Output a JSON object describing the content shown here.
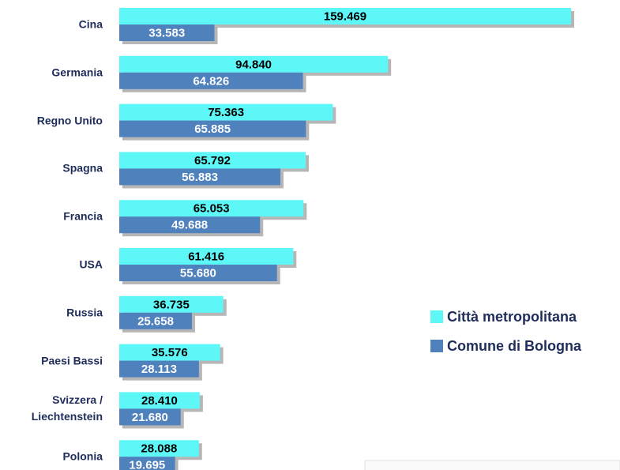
{
  "chart_data": {
    "type": "bar",
    "orientation": "horizontal",
    "categories": [
      "Cina",
      "Germania",
      "Regno Unito",
      "Spagna",
      "Francia",
      "USA",
      "Russia",
      "Paesi Bassi",
      "Svizzera / Liechtenstein",
      "Polonia"
    ],
    "series": [
      {
        "name": "Città metropolitana",
        "color": "#5ef7f7",
        "values": [
          159469,
          94840,
          75363,
          65792,
          65053,
          61416,
          36735,
          35576,
          28410,
          28088
        ],
        "value_labels": [
          "159.469",
          "94.840",
          "75.363",
          "65.792",
          "65.053",
          "61.416",
          "36.735",
          "35.576",
          "28.410",
          "28.088"
        ]
      },
      {
        "name": "Comune di Bologna",
        "color": "#4f81bd",
        "values": [
          33583,
          64826,
          65885,
          56883,
          49688,
          55680,
          25658,
          28113,
          21680,
          19695
        ],
        "value_labels": [
          "33.583",
          "64.826",
          "65.885",
          "56.883",
          "49.688",
          "55.680",
          "25.658",
          "28.113",
          "21.680",
          "19.695"
        ]
      }
    ],
    "legend": "right"
  }
}
